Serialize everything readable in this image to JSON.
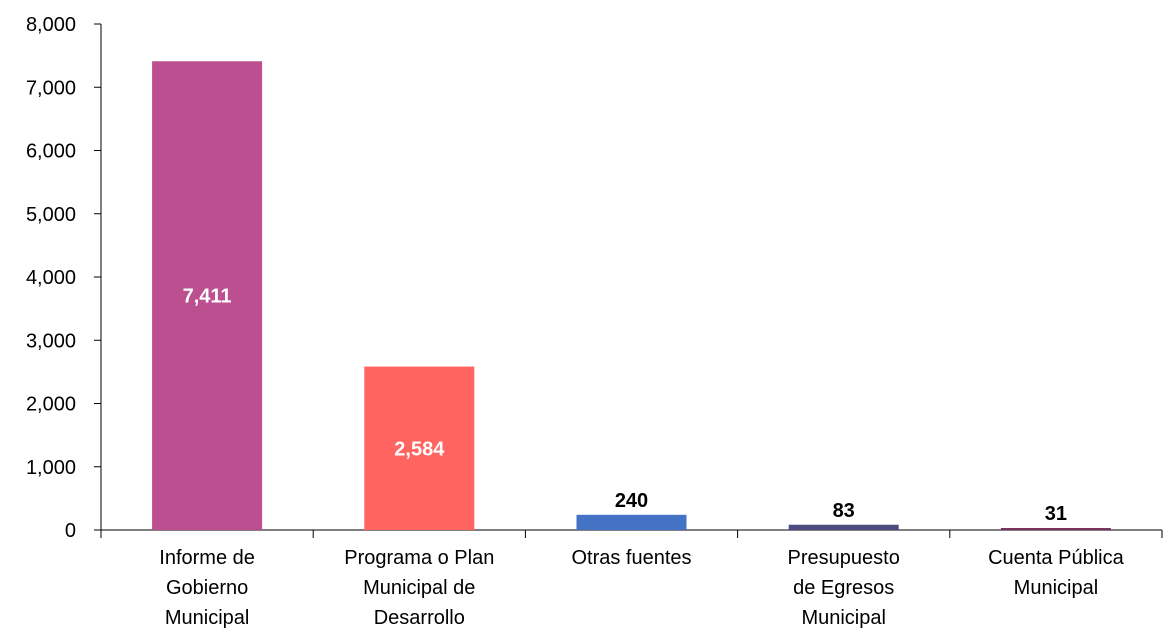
{
  "chart_data": {
    "type": "bar",
    "title": "",
    "xlabel": "",
    "ylabel": "",
    "ylim": [
      0,
      8000
    ],
    "yticks": [
      0,
      1000,
      2000,
      3000,
      4000,
      5000,
      6000,
      7000,
      8000
    ],
    "ytick_labels": [
      "0",
      "1,000",
      "2,000",
      "3,000",
      "4,000",
      "5,000",
      "6,000",
      "7,000",
      "8,000"
    ],
    "grid": false,
    "legend": "none",
    "categories": [
      [
        "Informe de",
        "Gobierno",
        "Municipal"
      ],
      [
        "Programa o Plan",
        "Municipal de",
        "Desarrollo"
      ],
      [
        "Otras fuentes"
      ],
      [
        "Presupuesto",
        "de Egresos",
        "Municipal"
      ],
      [
        "Cuenta Pública",
        "Municipal"
      ]
    ],
    "values": [
      7411,
      2584,
      240,
      83,
      31
    ],
    "value_labels": [
      "7,411",
      "2,584",
      "240",
      "83",
      "31"
    ],
    "label_position": [
      "inside",
      "inside",
      "above",
      "above",
      "above"
    ],
    "colors": [
      "#BC4F8F",
      "#FF6461",
      "#4472C4",
      "#4D4B7F",
      "#7A2E5A"
    ],
    "label_colors": [
      "#FFFFFF",
      "#FFFFFF",
      "#000000",
      "#000000",
      "#000000"
    ]
  }
}
